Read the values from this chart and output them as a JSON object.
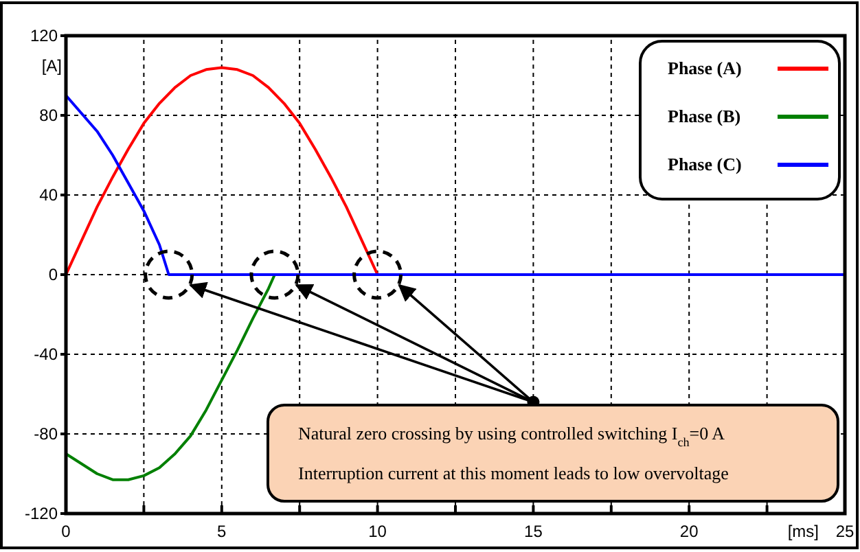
{
  "chart_data": {
    "type": "line",
    "xlabel": "[ms]",
    "ylabel": "[A]",
    "xlim": [
      0,
      25
    ],
    "ylim": [
      -120,
      120
    ],
    "xticks": [
      0,
      {
        "value": 2.5,
        "label": null
      },
      5,
      {
        "value": 7.5,
        "label": null
      },
      10,
      {
        "value": 12.5,
        "label": null
      },
      15,
      {
        "value": 17.5,
        "label": null
      },
      20,
      {
        "value": 22.5,
        "label": null
      },
      25
    ],
    "yticks": [
      -120,
      -80,
      -40,
      0,
      40,
      80,
      120
    ],
    "grid": true,
    "legend": "top right",
    "line_style": "solid",
    "series": [
      {
        "name": "Phase (A)",
        "color": "#ff0000",
        "x": [
          0,
          0.5,
          1,
          1.5,
          2,
          2.5,
          3,
          3.5,
          4,
          4.5,
          5,
          5.5,
          6,
          6.5,
          7,
          7.5,
          8,
          8.5,
          9,
          9.5,
          10
        ],
        "values": [
          0,
          17,
          34,
          49,
          63,
          76,
          86,
          94,
          100,
          103,
          104,
          103,
          100,
          94,
          86,
          76,
          63,
          49,
          34,
          17,
          0
        ]
      },
      {
        "name": "Phase (B)",
        "color": "#008000",
        "x": [
          0,
          0.5,
          1,
          1.5,
          2,
          2.5,
          3,
          3.5,
          4,
          4.5,
          5,
          5.5,
          6,
          6.5,
          6.7
        ],
        "values": [
          -90,
          -95,
          -100,
          -103,
          -103,
          -101,
          -97,
          -90,
          -81,
          -68,
          -53,
          -38,
          -22,
          -7,
          0
        ]
      },
      {
        "name": "Phase (C)",
        "color": "#0000ff",
        "x": [
          0,
          1,
          1.5,
          2,
          2.5,
          3,
          3.3,
          25
        ],
        "values": [
          90,
          72,
          60,
          46,
          32,
          15,
          0,
          0
        ]
      }
    ],
    "annotations": [
      {
        "text": "Natural zero crossing by using controlled switching I$_{ch}$=0 A",
        "x": 15,
        "y": -64
      },
      "Interruption current at this moment leads to low overvoltage"
    ]
  }
}
